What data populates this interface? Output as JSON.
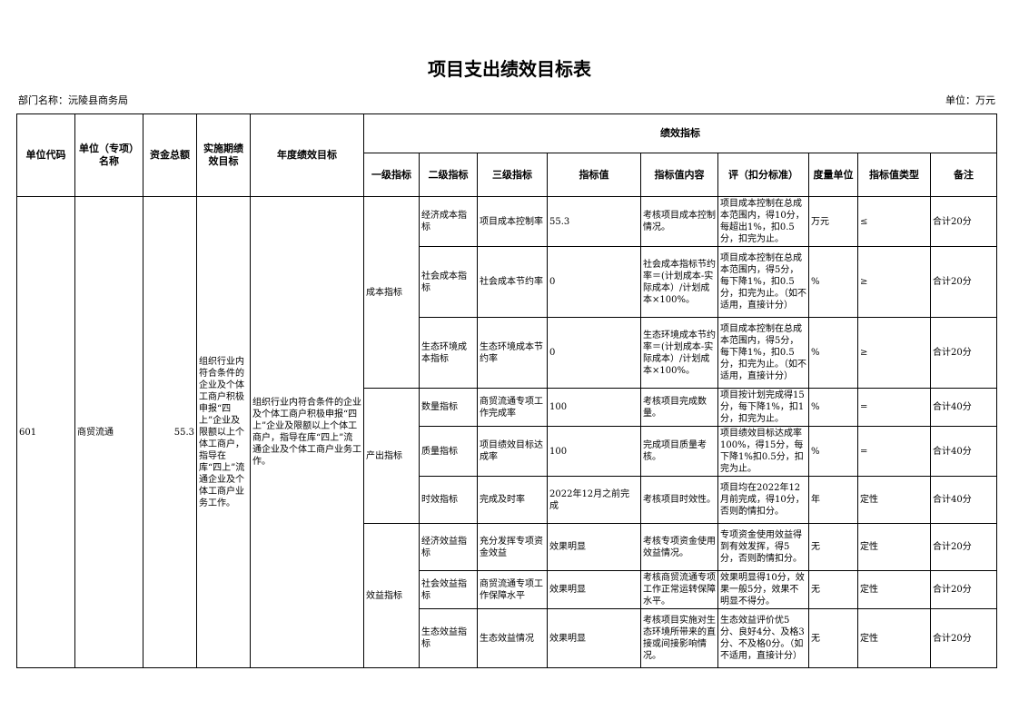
{
  "title": "项目支出绩效目标表",
  "department": "部门名称：沅陵县商务局",
  "unit": "单位：万元",
  "headers": {
    "unit_code": "单位代码",
    "unit_name": "单位（专项）名称",
    "total_funds": "资金总额",
    "period_goal": "实施期绩效目标",
    "annual_goal": "年度绩效目标",
    "indicators": "绩效指标",
    "level1": "一级指标",
    "level2": "二级指标",
    "level3": "三级指标",
    "value": "指标值",
    "value_content": "指标值内容",
    "scoring": "评（扣分标准）",
    "measure_unit": "度量单位",
    "value_type": "指标值类型",
    "remark": "备注"
  },
  "project": {
    "unit_code": "601",
    "unit_name": "商贸流通",
    "total_funds": "55.3",
    "period_goal": "组织行业内符合条件的企业及个体工商户积极申报“四上”企业及限额以上个体工商户，指导在库“四上”流通企业及个体工商户业务工作。",
    "annual_goal": "组织行业内符合条件的企业及个体工商户积极申报“四上”企业及限额以上个体工商户，指导在库“四上”流通企业及个体工商户业务工作。"
  },
  "groups": [
    {
      "level1": "成本指标",
      "rows": [
        {
          "level2": "经济成本指标",
          "level3": "项目成本控制率",
          "value": "55.3",
          "content": "考核项目成本控制情况。",
          "scoring": "项目成本控制在总成本范围内，得10分，每超出1%，扣0.5分，扣完为止。",
          "unit": "万元",
          "type": "≤",
          "remark": "合计20分"
        },
        {
          "level2": "社会成本指标",
          "level3": "社会成本节约率",
          "value": "0",
          "content": "社会成本指标节约率＝(计划成本-实际成本）/计划成本×100%。",
          "scoring": "项目成本控制在总成本范围内，得5分，每下降1%，扣0.5分，扣完为止。（如不适用，直接计分）",
          "unit": "%",
          "type": "≥",
          "remark": "合计20分"
        },
        {
          "level2": "生态环境成本指标",
          "level3": "生态环境成本节约率",
          "value": "0",
          "content": "生态环境成本节约率＝(计划成本-实际成本）/计划成本×100%。",
          "scoring": "项目成本控制在总成本范围内，得5分，每下降1%，扣0.5分，扣完为止。（如不适用，直接计分）",
          "unit": "%",
          "type": "≥",
          "remark": "合计20分"
        }
      ]
    },
    {
      "level1": "产出指标",
      "rows": [
        {
          "level2": "数量指标",
          "level3": "商贸流通专项工作完成率",
          "value": "100",
          "content": "考核项目完成数量。",
          "scoring": "项目按计划完成得15分，每下降1%，扣1分，扣完为止。",
          "unit": "%",
          "type": "=",
          "remark": "合计40分"
        },
        {
          "level2": "质量指标",
          "level3": "项目绩效目标达成率",
          "value": "100",
          "content": "完成项目质量考核。",
          "scoring": "项目绩效目标达成率100%，得15分，每下降1%扣0.5分，扣完为止。",
          "unit": "%",
          "type": "=",
          "remark": "合计40分"
        },
        {
          "level2": "时效指标",
          "level3": "完成及时率",
          "value": "2022年12月之前完成",
          "content": "考核项目时效性。",
          "scoring": "项目均在2022年12月前完成，得10分，否则酌情扣分。",
          "unit": "年",
          "type": "定性",
          "remark": "合计40分"
        }
      ]
    },
    {
      "level1": "效益指标",
      "rows": [
        {
          "level2": "经济效益指标",
          "level3": "充分发挥专项资金效益",
          "value": "效果明显",
          "content": "考核专项资金使用效益情况。",
          "scoring": "专项资金使用效益得到有效发挥，得5分，否则酌情扣分。",
          "unit": "无",
          "type": "定性",
          "remark": "合计20分"
        },
        {
          "level2": "社会效益指标",
          "level3": "商贸流通专项工作保障水平",
          "value": "效果明显",
          "content": "考核商贸流通专项工作正常运转保障水平。",
          "scoring": "效果明显得10分，效果一般5分，效果不明显不得分。",
          "unit": "无",
          "type": "定性",
          "remark": "合计20分"
        },
        {
          "level2": "生态效益指标",
          "level3": "生态效益情况",
          "value": "效果明显",
          "content": "考核项目实施对生态环境所带来的直接或间接影响情况。",
          "scoring": "生态效益评价优5分、良好4分、及格3分、不及格0分。（如不适用，直接计分）",
          "unit": "无",
          "type": "定性",
          "remark": "合计20分"
        }
      ]
    }
  ]
}
